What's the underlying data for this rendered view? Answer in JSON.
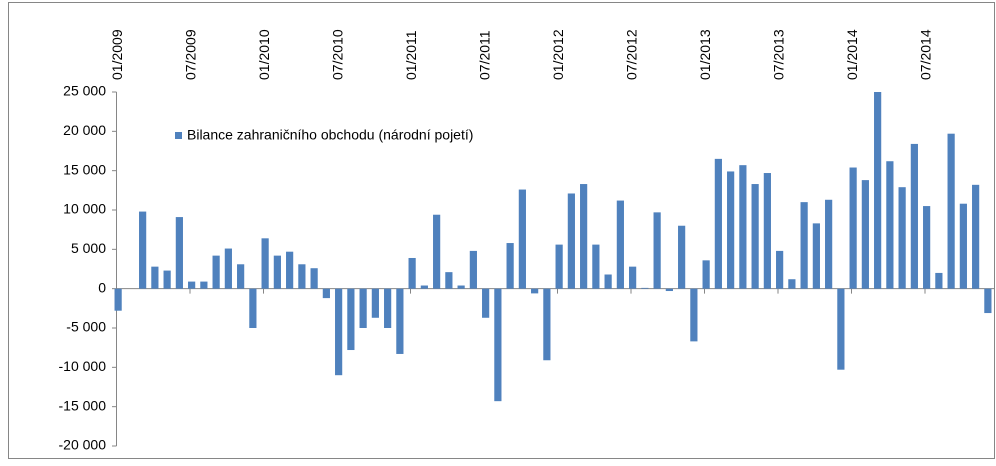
{
  "chart_data": {
    "type": "bar",
    "legend_label": "Bilance zahraničního obchodu (národní pojetí)",
    "color": "#4f81bd",
    "categories": [
      "01/2009",
      null,
      null,
      null,
      null,
      null,
      "07/2009",
      null,
      null,
      null,
      null,
      null,
      "01/2010",
      null,
      null,
      null,
      null,
      null,
      "07/2010",
      null,
      null,
      null,
      null,
      null,
      "01/2011",
      null,
      null,
      null,
      null,
      null,
      "07/2011",
      null,
      null,
      null,
      null,
      null,
      "01/2012",
      null,
      null,
      null,
      null,
      null,
      "07/2012",
      null,
      null,
      null,
      null,
      null,
      "01/2013",
      null,
      null,
      null,
      null,
      null,
      "07/2013",
      null,
      null,
      null,
      null,
      null,
      "01/2014",
      null,
      null,
      null,
      null,
      null,
      "07/2014",
      null,
      null,
      null,
      null,
      null
    ],
    "values": [
      -2800,
      0,
      9800,
      2800,
      2300,
      9100,
      900,
      900,
      4200,
      5100,
      3100,
      -5000,
      6400,
      4200,
      4700,
      3100,
      2600,
      -1200,
      -11000,
      -7800,
      -5000,
      -3700,
      -5000,
      -8300,
      3900,
      400,
      9400,
      2100,
      400,
      4800,
      -3700,
      -14300,
      5800,
      12600,
      -600,
      -9100,
      5600,
      12100,
      13300,
      5600,
      1800,
      11200,
      2800,
      100,
      9700,
      -300,
      8000,
      -6700,
      3600,
      16500,
      14900,
      15700,
      13300,
      14700,
      4800,
      1200,
      11000,
      8300,
      11300,
      -10300,
      15400,
      13800,
      25000,
      16200,
      12900,
      18400,
      10500,
      2000,
      19700,
      10800,
      13200,
      -3100
    ],
    "ylim": [
      -20000,
      25000
    ],
    "yticks": [
      {
        "value": -20000,
        "label": "-20 000"
      },
      {
        "value": -15000,
        "label": "-15 000"
      },
      {
        "value": -10000,
        "label": "-10 000"
      },
      {
        "value": -5000,
        "label": "-5 000"
      },
      0,
      {
        "value": 5000,
        "label": "5 000"
      },
      {
        "value": 10000,
        "label": "10 000"
      },
      {
        "value": 15000,
        "label": "15 000"
      },
      {
        "value": 20000,
        "label": "20 000"
      },
      {
        "value": 25000,
        "label": "25 000"
      }
    ],
    "grid": false
  }
}
